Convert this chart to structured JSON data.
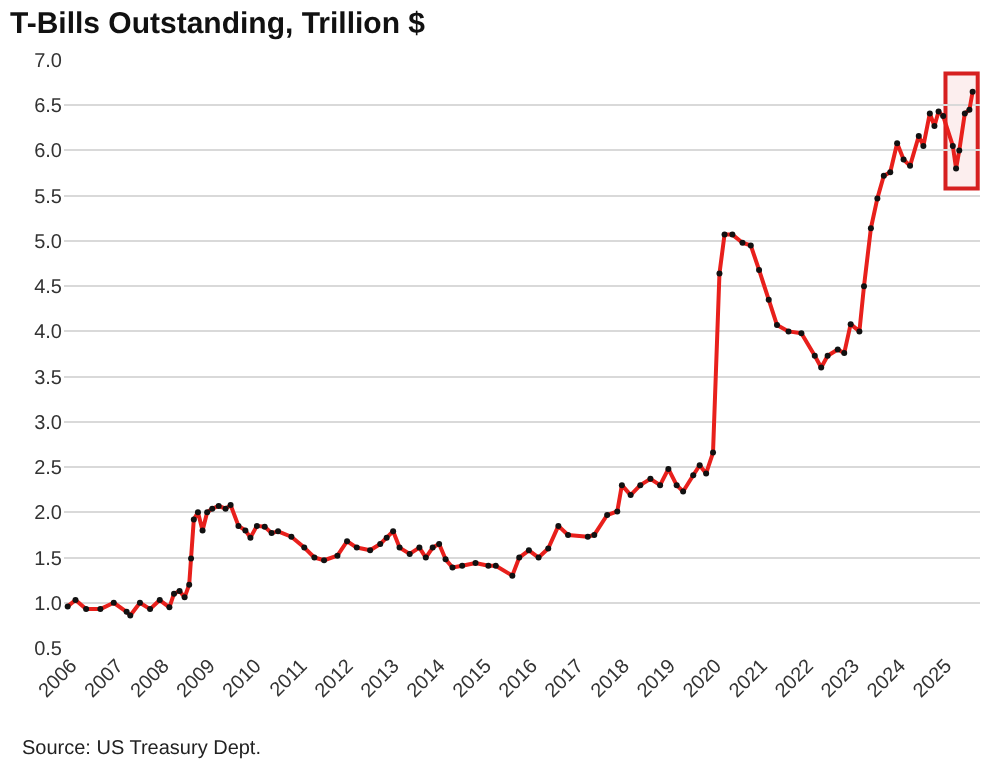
{
  "chart_data": {
    "type": "line",
    "title": "T-Bills Outstanding, Trillion $",
    "annotations": [
      "Source: US Treasury Dept."
    ],
    "x": [
      2005.93,
      2006.1,
      2006.33,
      2006.64,
      2006.93,
      2007.21,
      2007.29,
      2007.5,
      2007.72,
      2007.93,
      2008.14,
      2008.24,
      2008.36,
      2008.47,
      2008.57,
      2008.61,
      2008.67,
      2008.76,
      2008.86,
      2008.96,
      2009.07,
      2009.21,
      2009.36,
      2009.47,
      2009.64,
      2009.79,
      2009.9,
      2010.04,
      2010.21,
      2010.36,
      2010.5,
      2010.79,
      2011.07,
      2011.29,
      2011.5,
      2011.79,
      2012.0,
      2012.21,
      2012.5,
      2012.72,
      2012.86,
      2013.0,
      2013.14,
      2013.36,
      2013.57,
      2013.71,
      2013.86,
      2014.0,
      2014.14,
      2014.29,
      2014.5,
      2014.79,
      2015.07,
      2015.23,
      2015.59,
      2015.74,
      2015.95,
      2016.16,
      2016.37,
      2016.59,
      2016.8,
      2017.23,
      2017.37,
      2017.65,
      2017.87,
      2017.97,
      2018.16,
      2018.37,
      2018.59,
      2018.8,
      2018.98,
      2019.16,
      2019.3,
      2019.52,
      2019.66,
      2019.8,
      2019.95,
      2020.09,
      2020.2,
      2020.37,
      2020.59,
      2020.77,
      2020.95,
      2021.16,
      2021.34,
      2021.59,
      2021.87,
      2022.16,
      2022.3,
      2022.44,
      2022.66,
      2022.8,
      2022.94,
      2023.13,
      2023.23,
      2023.38,
      2023.52,
      2023.66,
      2023.8,
      2023.95,
      2024.09,
      2024.23,
      2024.42,
      2024.52,
      2024.66,
      2024.76,
      2024.85,
      2024.95,
      2025.16,
      2025.23,
      2025.3,
      2025.42,
      2025.52,
      2025.59
    ],
    "series": [
      {
        "color": "#e8201c",
        "values": [
          0.96,
          1.03,
          0.93,
          0.93,
          1.0,
          0.9,
          0.86,
          1.0,
          0.93,
          1.03,
          0.95,
          1.1,
          1.13,
          1.06,
          1.2,
          1.49,
          1.92,
          2.0,
          1.8,
          2.0,
          2.04,
          2.07,
          2.04,
          2.08,
          1.85,
          1.8,
          1.72,
          1.85,
          1.84,
          1.77,
          1.79,
          1.73,
          1.61,
          1.5,
          1.47,
          1.52,
          1.68,
          1.61,
          1.58,
          1.65,
          1.72,
          1.79,
          1.61,
          1.54,
          1.61,
          1.5,
          1.61,
          1.65,
          1.48,
          1.39,
          1.41,
          1.44,
          1.41,
          1.41,
          1.3,
          1.5,
          1.58,
          1.5,
          1.6,
          1.85,
          1.75,
          1.73,
          1.75,
          1.97,
          2.01,
          2.3,
          2.19,
          2.3,
          2.37,
          2.3,
          2.48,
          2.3,
          2.23,
          2.41,
          2.52,
          2.43,
          2.66,
          4.64,
          5.07,
          5.07,
          4.98,
          4.95,
          4.68,
          4.35,
          4.07,
          4.0,
          3.98,
          3.73,
          3.6,
          3.73,
          3.8,
          3.76,
          4.08,
          4.0,
          4.5,
          5.14,
          5.47,
          5.72,
          5.76,
          6.08,
          5.9,
          5.83,
          6.16,
          6.05,
          6.41,
          6.27,
          6.43,
          6.38,
          6.05,
          5.8,
          6.0,
          6.41,
          6.45,
          6.65
        ]
      }
    ],
    "xlim": [
      2005.85,
      2025.75
    ],
    "xticks": [
      2006,
      2007,
      2008,
      2009,
      2010,
      2011,
      2012,
      2013,
      2014,
      2015,
      2016,
      2017,
      2018,
      2019,
      2020,
      2021,
      2022,
      2023,
      2024,
      2025
    ],
    "ylim": [
      0.5,
      7.0
    ],
    "yticks": [
      {
        "value": 0.5,
        "label": "0.5"
      },
      {
        "value": 1.0,
        "label": "1.0"
      },
      {
        "value": 1.5,
        "label": "1.5"
      },
      {
        "value": 2.0,
        "label": "2.0"
      },
      {
        "value": 2.5,
        "label": "2.5"
      },
      {
        "value": 3.0,
        "label": "3.0"
      },
      {
        "value": 3.5,
        "label": "3.5"
      },
      {
        "value": 4.0,
        "label": "4.0"
      },
      {
        "value": 4.5,
        "label": "4.5"
      },
      {
        "value": 5.0,
        "label": "5.0"
      },
      {
        "value": 5.5,
        "label": "5.5"
      },
      {
        "value": 6.0,
        "label": "6.0"
      },
      {
        "value": 6.5,
        "label": "6.5"
      },
      {
        "value": 7.0,
        "label": "7.0"
      }
    ],
    "bands": [
      {
        "axis": "x",
        "from": 2025.0,
        "to": 2025.7,
        "color": "#d62020"
      }
    ],
    "grid": "y",
    "marker": "circle",
    "line_style": "solid"
  }
}
